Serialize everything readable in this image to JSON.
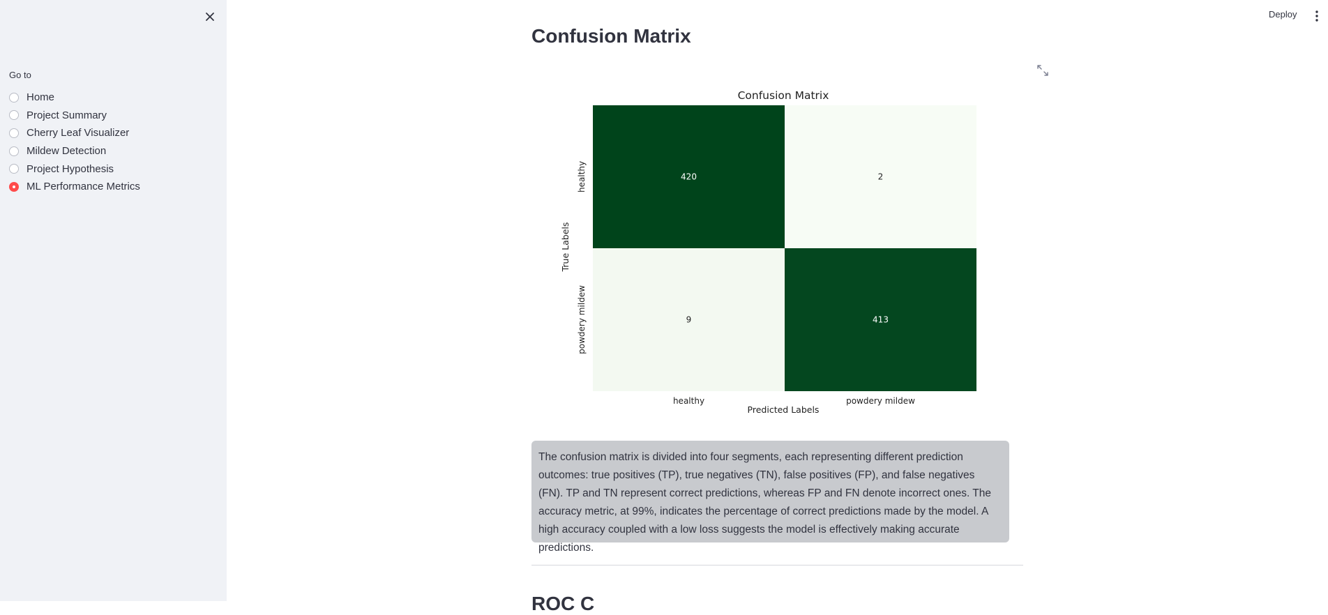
{
  "sidebar": {
    "nav_label": "Go to",
    "items": [
      {
        "label": "Home",
        "selected": false
      },
      {
        "label": "Project Summary",
        "selected": false
      },
      {
        "label": "Cherry Leaf Visualizer",
        "selected": false
      },
      {
        "label": "Mildew Detection",
        "selected": false
      },
      {
        "label": "Project Hypothesis",
        "selected": false
      },
      {
        "label": "ML Performance Metrics",
        "selected": true
      }
    ],
    "close_icon": "close-icon"
  },
  "header": {
    "deploy_label": "Deploy",
    "menu_icon": "vertical-dots-icon"
  },
  "main": {
    "title": "Confusion Matrix",
    "fullscreen_icon": "fullscreen-icon",
    "description": "The confusion matrix is divided into four segments, each representing different prediction outcomes: true positives (TP), true negatives (TN), false positives (FP), and false negatives (FN). TP and TN represent correct predictions, whereas FP and FN denote incorrect ones. The accuracy metric, at 99%, indicates the percentage of correct predictions made by the model. A high accuracy coupled with a low loss suggests the model is effectively making accurate predictions.",
    "next_heading": "ROC C"
  },
  "colors": {
    "accent": "#ff4b4b",
    "sidebar_bg": "#f0f2f6",
    "info_bg": "#c8cace",
    "high_cell": "#00441b",
    "low_cell": "#f2f9f0"
  },
  "chart_data": {
    "type": "heatmap",
    "title": "Confusion Matrix",
    "xlabel": "Predicted Labels",
    "ylabel": "True Labels",
    "x_categories": [
      "healthy",
      "powdery mildew"
    ],
    "y_categories": [
      "healthy",
      "powdery mildew"
    ],
    "values": [
      [
        420,
        2
      ],
      [
        9,
        413
      ]
    ],
    "colormap": "Greens",
    "colorbar": false
  }
}
